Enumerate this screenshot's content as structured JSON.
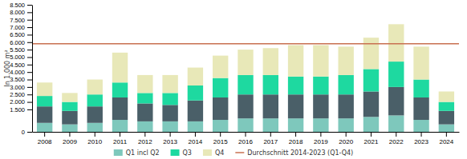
{
  "chart_data": {
    "type": "bar",
    "stacked": true,
    "grid": false,
    "legend": "bottom",
    "ylabel": "In 1.000 m²",
    "categories": [
      "2008",
      "2009",
      "2010",
      "2011",
      "2012",
      "2013",
      "2014",
      "2015",
      "2016",
      "2017",
      "2018",
      "2019",
      "2020",
      "2021",
      "2022",
      "2023",
      "2024"
    ],
    "series": [
      {
        "name": "Q1 incl Q2",
        "color": "#7ec8bc",
        "values": [
          600,
          500,
          600,
          800,
          700,
          700,
          700,
          800,
          900,
          900,
          900,
          900,
          900,
          1000,
          1100,
          800,
          500
        ]
      },
      {
        "color": "#4a5f68",
        "values": [
          1100,
          900,
          1100,
          1500,
          1200,
          1100,
          1400,
          1500,
          1600,
          1600,
          1600,
          1600,
          1600,
          1700,
          1900,
          1500,
          900
        ]
      },
      {
        "name": "Q3",
        "color": "#1ed9a0",
        "values": [
          700,
          600,
          800,
          1000,
          700,
          800,
          1000,
          1300,
          1300,
          1300,
          1200,
          1200,
          1300,
          1500,
          1700,
          1200,
          600
        ]
      },
      {
        "name": "Q4",
        "color": "#e8e8b8",
        "values": [
          900,
          600,
          1000,
          2000,
          1200,
          1200,
          1200,
          1500,
          1700,
          1800,
          2100,
          2100,
          1900,
          2100,
          2500,
          2200,
          700
        ]
      }
    ],
    "reference_lines": [
      {
        "name": "Durchschnitt 2014-2023 (Q1-Q4)",
        "value": 5900,
        "color": "#c87050"
      }
    ],
    "ylim": [
      0,
      8500
    ],
    "yticks": [
      0,
      {
        "value": 1500,
        "label": "1.500"
      },
      {
        "value": 2000,
        "label": "2.000"
      },
      {
        "value": 2500,
        "label": "2.500"
      },
      {
        "value": 3000,
        "label": "3.000"
      },
      {
        "value": 3500,
        "label": "3.500"
      },
      {
        "value": 4000,
        "label": "4.000"
      },
      {
        "value": 4500,
        "label": "4.500"
      },
      {
        "value": 5000,
        "label": "5.000"
      },
      {
        "value": 5500,
        "label": "5.500"
      },
      {
        "value": 6000,
        "label": "6.000"
      },
      {
        "value": 6500,
        "label": "6.500"
      },
      {
        "value": 7000,
        "label": "7.000"
      },
      {
        "value": 7500,
        "label": "7.500"
      },
      {
        "value": 8000,
        "label": "8.000"
      },
      {
        "value": 8500,
        "label": "8.500"
      }
    ]
  }
}
